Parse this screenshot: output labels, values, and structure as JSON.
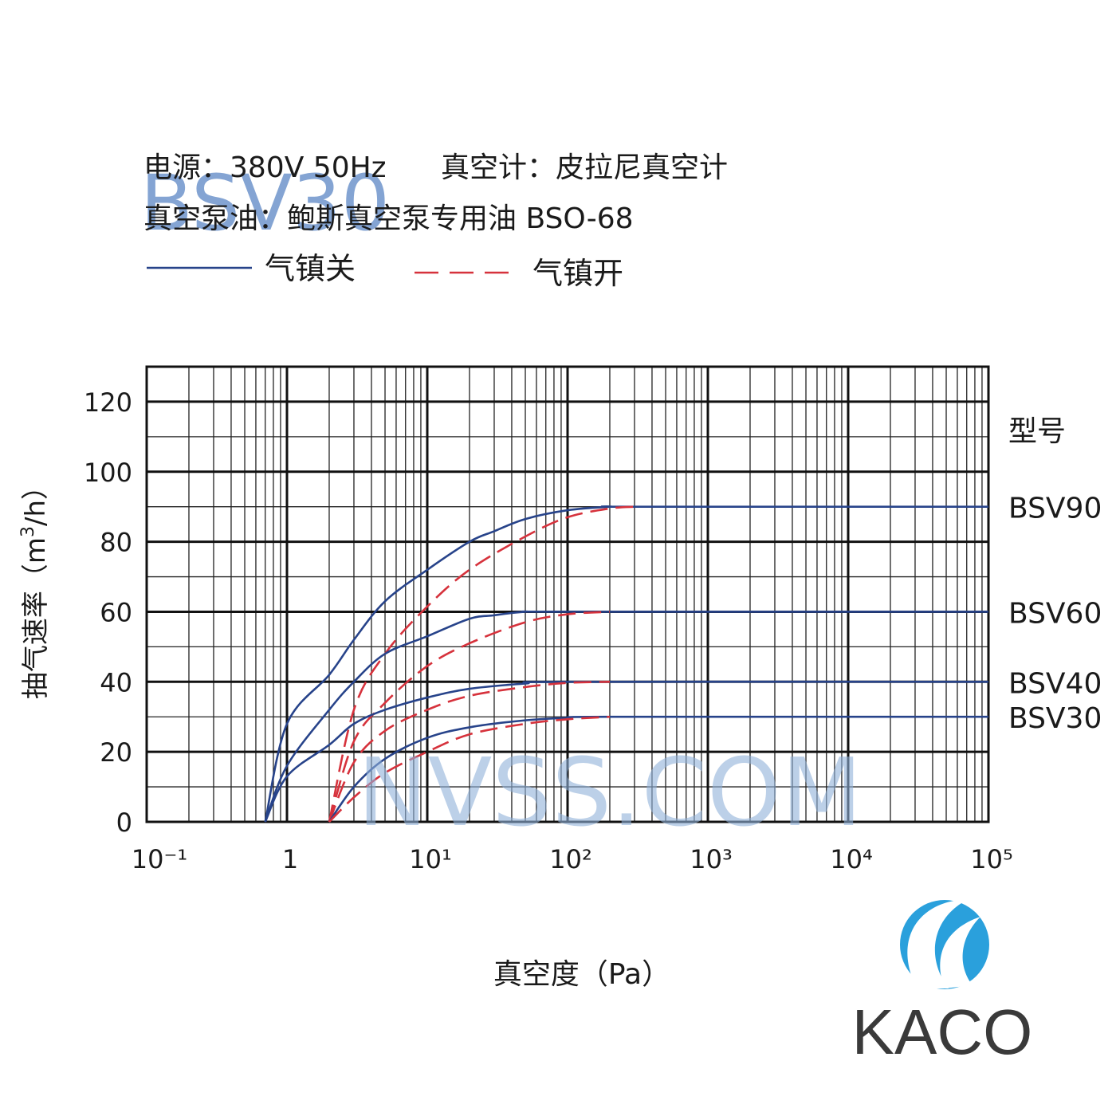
{
  "chart_data": {
    "type": "line",
    "notes": [
      "电源：380V 50Hz",
      "真空计：皮拉尼真空计",
      "真空泵油：鲍斯真空泵专用油 BSO-68"
    ],
    "legend": [
      {
        "name": "气镇关",
        "color": "#27438a",
        "dashed": false
      },
      {
        "name": "气镇开",
        "color": "#d6323c",
        "dashed": true
      }
    ],
    "ylabel": [
      "抽气速率（m",
      "3",
      "/h）"
    ],
    "xlabel": "真空度（Pa）",
    "series_header": "型号",
    "xscale": "log",
    "xlim": [
      0.1,
      100000
    ],
    "xticks": [
      {
        "value": 0.1,
        "label": "10⁻¹"
      },
      1,
      {
        "value": 10,
        "label": "10¹"
      },
      {
        "value": 100,
        "label": "10²"
      },
      {
        "value": 1000,
        "label": "10³"
      },
      {
        "value": 10000,
        "label": "10⁴"
      },
      {
        "value": 100000,
        "label": "10⁵"
      }
    ],
    "ylim": [
      0,
      130
    ],
    "yticks": [
      0,
      20,
      40,
      60,
      80,
      100,
      120
    ],
    "yminorticks": [
      10,
      30,
      50,
      70,
      90,
      110
    ],
    "grid": true,
    "series": [
      {
        "name": "BSV90",
        "curves": [
          {
            "x": [
              0.7,
              1,
              2,
              3,
              5,
              10,
              20,
              30,
              50,
              100,
              200,
              300,
              100000
            ],
            "values": [
              0,
              28,
              42,
              52,
              63,
              72,
              80,
              83,
              86.5,
              89,
              90,
              90,
              90
            ]
          },
          {
            "x": [
              2,
              3,
              5,
              10,
              20,
              50,
              100,
              200,
              300
            ],
            "values": [
              0,
              32,
              48,
              61.5,
              72,
              81.5,
              87,
              89.5,
              90
            ]
          }
        ]
      },
      {
        "name": "BSV60",
        "curves": [
          {
            "x": [
              0.7,
              1,
              2,
              3,
              5,
              10,
              20,
              30,
              50,
              100,
              100000
            ],
            "values": [
              0,
              16,
              32,
              40,
              48,
              53,
              58,
              59,
              60,
              60,
              60
            ]
          },
          {
            "x": [
              2,
              3,
              5,
              10,
              20,
              50,
              100,
              200
            ],
            "values": [
              0,
              23,
              34,
              44.5,
              51,
              57,
              59.3,
              60
            ]
          }
        ]
      },
      {
        "name": "BSV40",
        "curves": [
          {
            "x": [
              0.7,
              1,
              2,
              3,
              5,
              10,
              20,
              50,
              100,
              100000
            ],
            "values": [
              0,
              13,
              22,
              28,
              32,
              35.5,
              38,
              39.5,
              40,
              40
            ]
          },
          {
            "x": [
              2,
              3,
              5,
              10,
              20,
              50,
              100,
              200
            ],
            "values": [
              0,
              17,
              26,
              32,
              36,
              38.5,
              39.7,
              40
            ]
          }
        ]
      },
      {
        "name": "BSV30",
        "curves": [
          {
            "x": [
              2,
              3,
              5,
              10,
              20,
              50,
              100,
              200,
              100000
            ],
            "values": [
              0,
              10,
              18,
              24,
              27,
              29,
              29.7,
              30,
              30
            ]
          },
          {
            "x": [
              2,
              3,
              5,
              10,
              20,
              50,
              100,
              200
            ],
            "values": [
              0,
              7,
              14,
              20,
              25,
              28,
              29.3,
              30
            ]
          }
        ]
      }
    ]
  },
  "watermarks": [
    "BSV30",
    "NVSS.COM"
  ],
  "logo": "KACO"
}
